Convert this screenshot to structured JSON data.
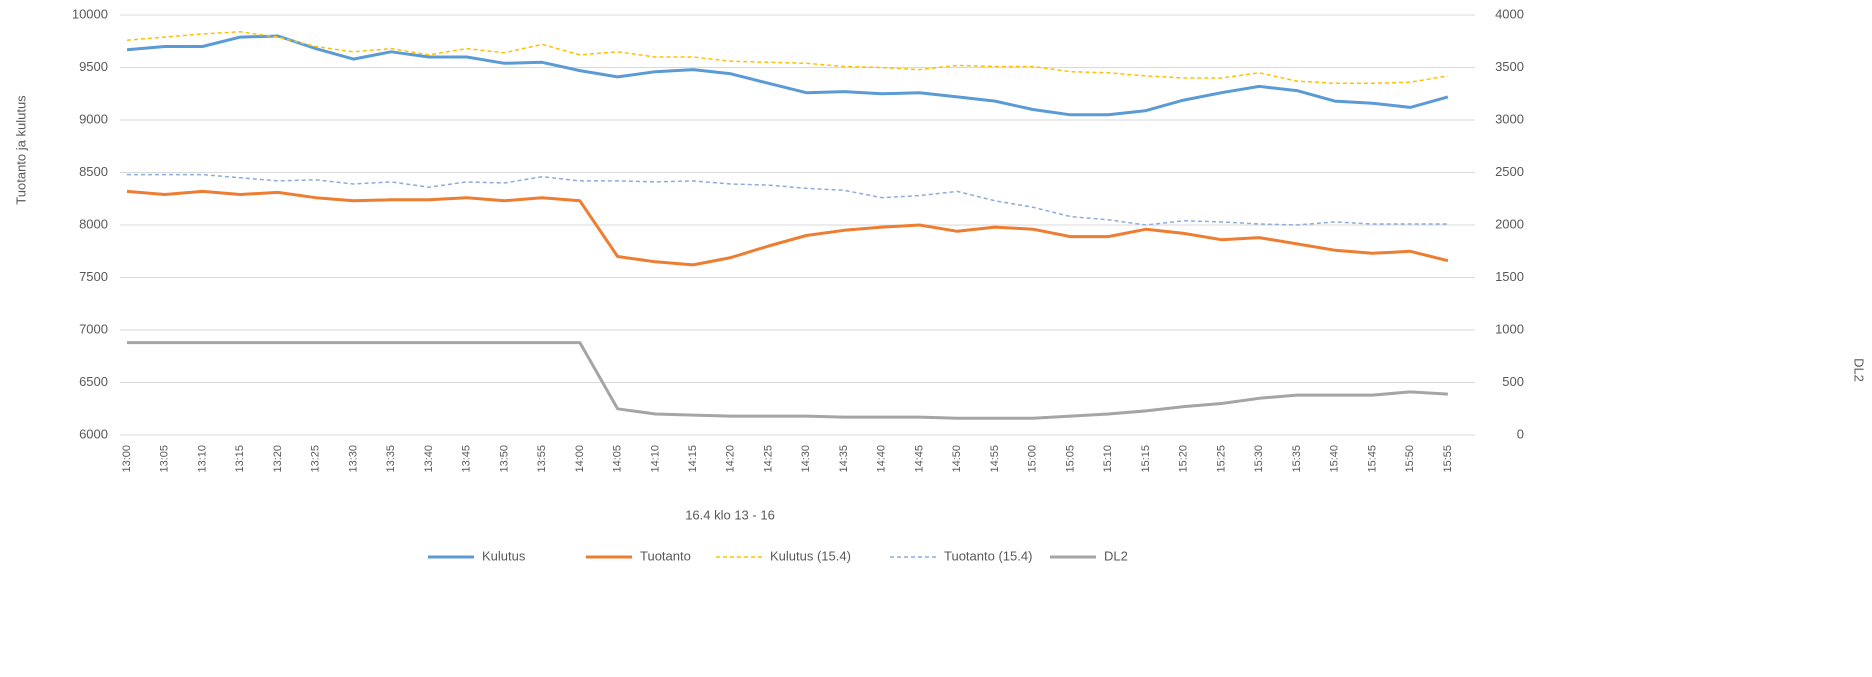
{
  "chart_data": {
    "type": "line",
    "y_label": "Tuotanto ja kulutus",
    "y2_label": "DL2",
    "x_label": "16.4 klo 13 - 16",
    "categories": [
      "13:00",
      "13:05",
      "13:10",
      "13:15",
      "13:20",
      "13:25",
      "13:30",
      "13:35",
      "13:40",
      "13:45",
      "13:50",
      "13:55",
      "14:00",
      "14:05",
      "14:10",
      "14:15",
      "14:20",
      "14:25",
      "14:30",
      "14:35",
      "14:40",
      "14:45",
      "14:50",
      "14:55",
      "15:00",
      "15:05",
      "15:10",
      "15:15",
      "15:20",
      "15:25",
      "15:30",
      "15:35",
      "15:40",
      "15:45",
      "15:50",
      "15:55"
    ],
    "ylim": [
      6000,
      10000
    ],
    "yticks": [
      6000,
      6500,
      7000,
      7500,
      8000,
      8500,
      9000,
      9500,
      10000
    ],
    "y2lim": [
      0,
      4000
    ],
    "y2ticks": [
      0,
      500,
      1000,
      1500,
      2000,
      2500,
      3000,
      3500,
      4000
    ],
    "grid": true,
    "legend": "bottom",
    "series": [
      {
        "name": "Kulutus",
        "color": "#5b9bd5",
        "dash": false,
        "values": [
          9670,
          9700,
          9700,
          9790,
          9800,
          9680,
          9580,
          9650,
          9600,
          9600,
          9540,
          9550,
          9470,
          9410,
          9460,
          9480,
          9440,
          9350,
          9260,
          9270,
          9250,
          9260,
          9220,
          9180,
          9100,
          9050,
          9050,
          9090,
          9190,
          9260,
          9320,
          9280,
          9180,
          9160,
          9120,
          9220
        ]
      },
      {
        "name": "Tuotanto",
        "color": "#ed7d31",
        "dash": false,
        "values": [
          8320,
          8290,
          8320,
          8290,
          8310,
          8260,
          8230,
          8240,
          8240,
          8260,
          8230,
          8260,
          8230,
          7700,
          7650,
          7620,
          7690,
          7800,
          7900,
          7950,
          7980,
          8000,
          7940,
          7980,
          7960,
          7890,
          7890,
          7960,
          7920,
          7860,
          7880,
          7820,
          7760,
          7730,
          7750,
          7660
        ]
      },
      {
        "name": "Kulutus (15.4)",
        "color": "#ffc000",
        "dash": true,
        "values": [
          9760,
          9790,
          9820,
          9840,
          9790,
          9700,
          9650,
          9680,
          9620,
          9680,
          9640,
          9720,
          9620,
          9650,
          9600,
          9600,
          9560,
          9550,
          9540,
          9510,
          9500,
          9480,
          9520,
          9510,
          9510,
          9460,
          9450,
          9420,
          9400,
          9400,
          9450,
          9370,
          9350,
          9350,
          9360,
          9420
        ]
      },
      {
        "name": "Tuotanto (15.4)",
        "color": "#8faadc",
        "dash": true,
        "values": [
          8480,
          8480,
          8480,
          8450,
          8420,
          8430,
          8390,
          8410,
          8360,
          8410,
          8400,
          8460,
          8420,
          8420,
          8410,
          8420,
          8390,
          8380,
          8350,
          8330,
          8260,
          8280,
          8320,
          8230,
          8170,
          8080,
          8050,
          8000,
          8040,
          8030,
          8010,
          8000,
          8030,
          8010,
          8010,
          8010
        ]
      },
      {
        "name": "DL2",
        "color": "#a5a5a5",
        "dash": false,
        "axis": "y2",
        "values": [
          880,
          880,
          880,
          880,
          880,
          880,
          880,
          880,
          880,
          880,
          880,
          880,
          880,
          250,
          200,
          190,
          180,
          180,
          180,
          170,
          170,
          170,
          160,
          160,
          160,
          180,
          200,
          230,
          270,
          300,
          350,
          380,
          380,
          380,
          410,
          390
        ]
      }
    ]
  }
}
